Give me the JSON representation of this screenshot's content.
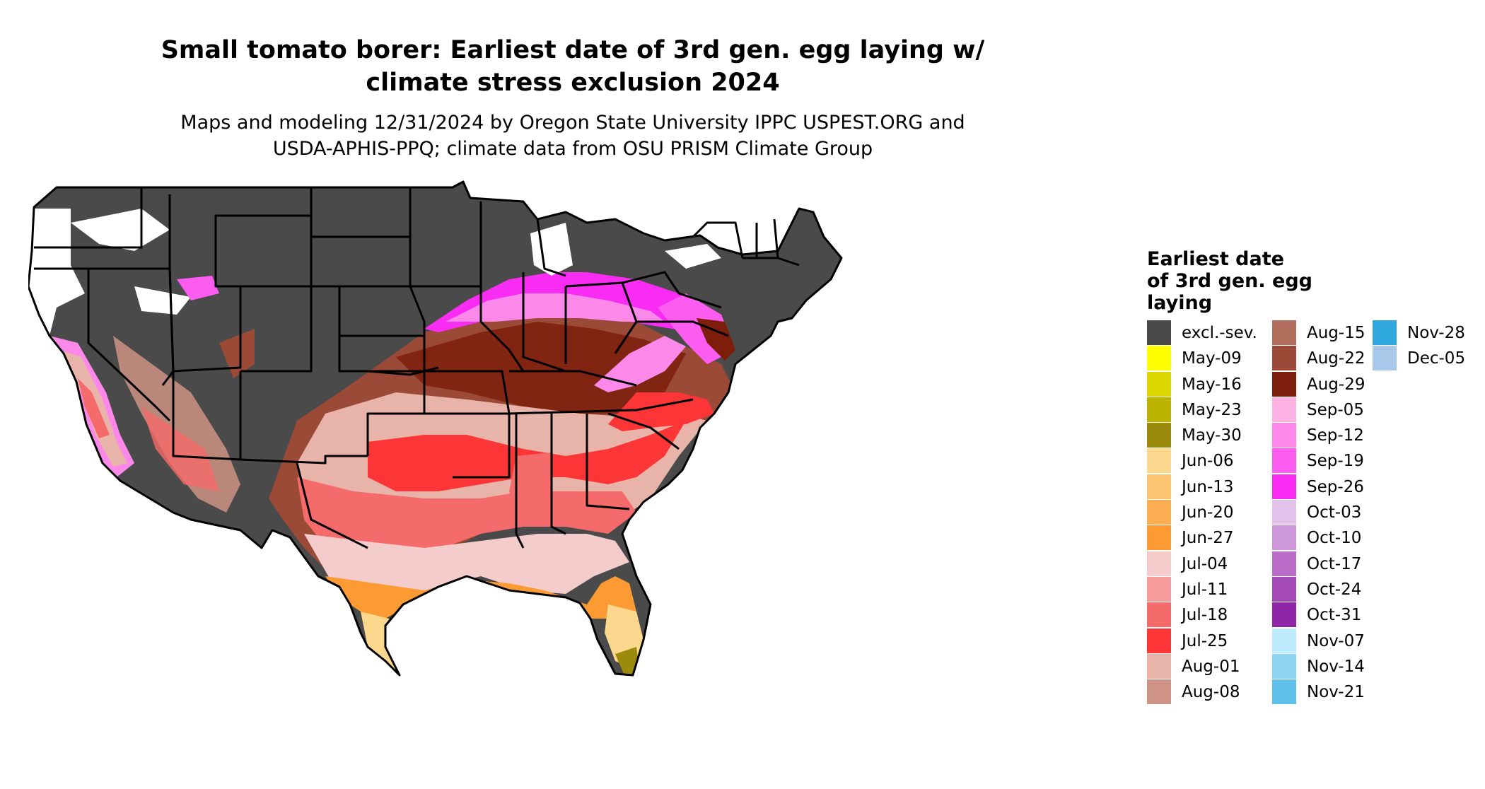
{
  "title": {
    "line1": "Small tomato borer: Earliest date of 3rd gen. egg laying w/",
    "line2": "climate stress exclusion 2024"
  },
  "subtitle": {
    "line1": "Maps and modeling 12/31/2024 by Oregon State University IPPC USPEST.ORG and",
    "line2": "USDA-APHIS-PPQ; climate data from OSU PRISM Climate Group"
  },
  "legend": {
    "title_line1": "Earliest date",
    "title_line2": "of 3rd gen. egg",
    "title_line3": "laying",
    "columns": [
      [
        {
          "label": "excl.-sev.",
          "color": "#4a4a4a"
        },
        {
          "label": "May-09",
          "color": "#ffff00"
        },
        {
          "label": "May-16",
          "color": "#dcd800"
        },
        {
          "label": "May-23",
          "color": "#bcb400"
        },
        {
          "label": "May-30",
          "color": "#9c8a0c"
        },
        {
          "label": "Jun-06",
          "color": "#fcd88e"
        },
        {
          "label": "Jun-13",
          "color": "#fcc370"
        },
        {
          "label": "Jun-20",
          "color": "#fcae52"
        },
        {
          "label": "Jun-27",
          "color": "#fc9a34"
        },
        {
          "label": "Jul-04",
          "color": "#f5cccc"
        },
        {
          "label": "Jul-11",
          "color": "#f59b9b"
        },
        {
          "label": "Jul-18",
          "color": "#f56a6a"
        },
        {
          "label": "Jul-25",
          "color": "#fc3636"
        },
        {
          "label": "Aug-01",
          "color": "#e8b4aa"
        },
        {
          "label": "Aug-08",
          "color": "#cd9384"
        }
      ],
      [
        {
          "label": "Aug-15",
          "color": "#b36f5e"
        },
        {
          "label": "Aug-22",
          "color": "#9b4a38"
        },
        {
          "label": "Aug-29",
          "color": "#7d1d0c"
        },
        {
          "label": "Sep-05",
          "color": "#fcb2e2"
        },
        {
          "label": "Sep-12",
          "color": "#fc88ea"
        },
        {
          "label": "Sep-19",
          "color": "#fc5cf0"
        },
        {
          "label": "Sep-26",
          "color": "#f82cf2"
        },
        {
          "label": "Oct-03",
          "color": "#e2c2ea"
        },
        {
          "label": "Oct-10",
          "color": "#cd97d9"
        },
        {
          "label": "Oct-17",
          "color": "#b96dc8"
        },
        {
          "label": "Oct-24",
          "color": "#a449b8"
        },
        {
          "label": "Oct-31",
          "color": "#8f26aa"
        },
        {
          "label": "Nov-07",
          "color": "#bdeafc"
        },
        {
          "label": "Nov-14",
          "color": "#8dd5f2"
        },
        {
          "label": "Nov-21",
          "color": "#5fc1ea"
        }
      ],
      [
        {
          "label": "Nov-28",
          "color": "#2ea8de"
        },
        {
          "label": "Dec-05",
          "color": "#a8c8ea"
        }
      ]
    ]
  },
  "map": {
    "zones": [
      {
        "color": "#4a4a4a",
        "label": "excl.-sev."
      },
      {
        "color": "#7d1d0c",
        "label": "Aug-29"
      },
      {
        "color": "#9b4a38",
        "label": "Aug-22"
      },
      {
        "color": "#e8b4aa",
        "label": "Aug-01"
      },
      {
        "color": "#fc3636",
        "label": "Jul-25"
      },
      {
        "color": "#f56a6a",
        "label": "Jul-18"
      },
      {
        "color": "#f5cccc",
        "label": "Jul-04"
      },
      {
        "color": "#fc9a34",
        "label": "Jun-27"
      },
      {
        "color": "#fcd88e",
        "label": "Jun-06"
      },
      {
        "color": "#9c8a0c",
        "label": "May-30"
      },
      {
        "color": "#ffff00",
        "label": "May-09"
      },
      {
        "color": "#f82cf2",
        "label": "Sep-26"
      },
      {
        "color": "#fc88ea",
        "label": "Sep-12"
      }
    ]
  }
}
